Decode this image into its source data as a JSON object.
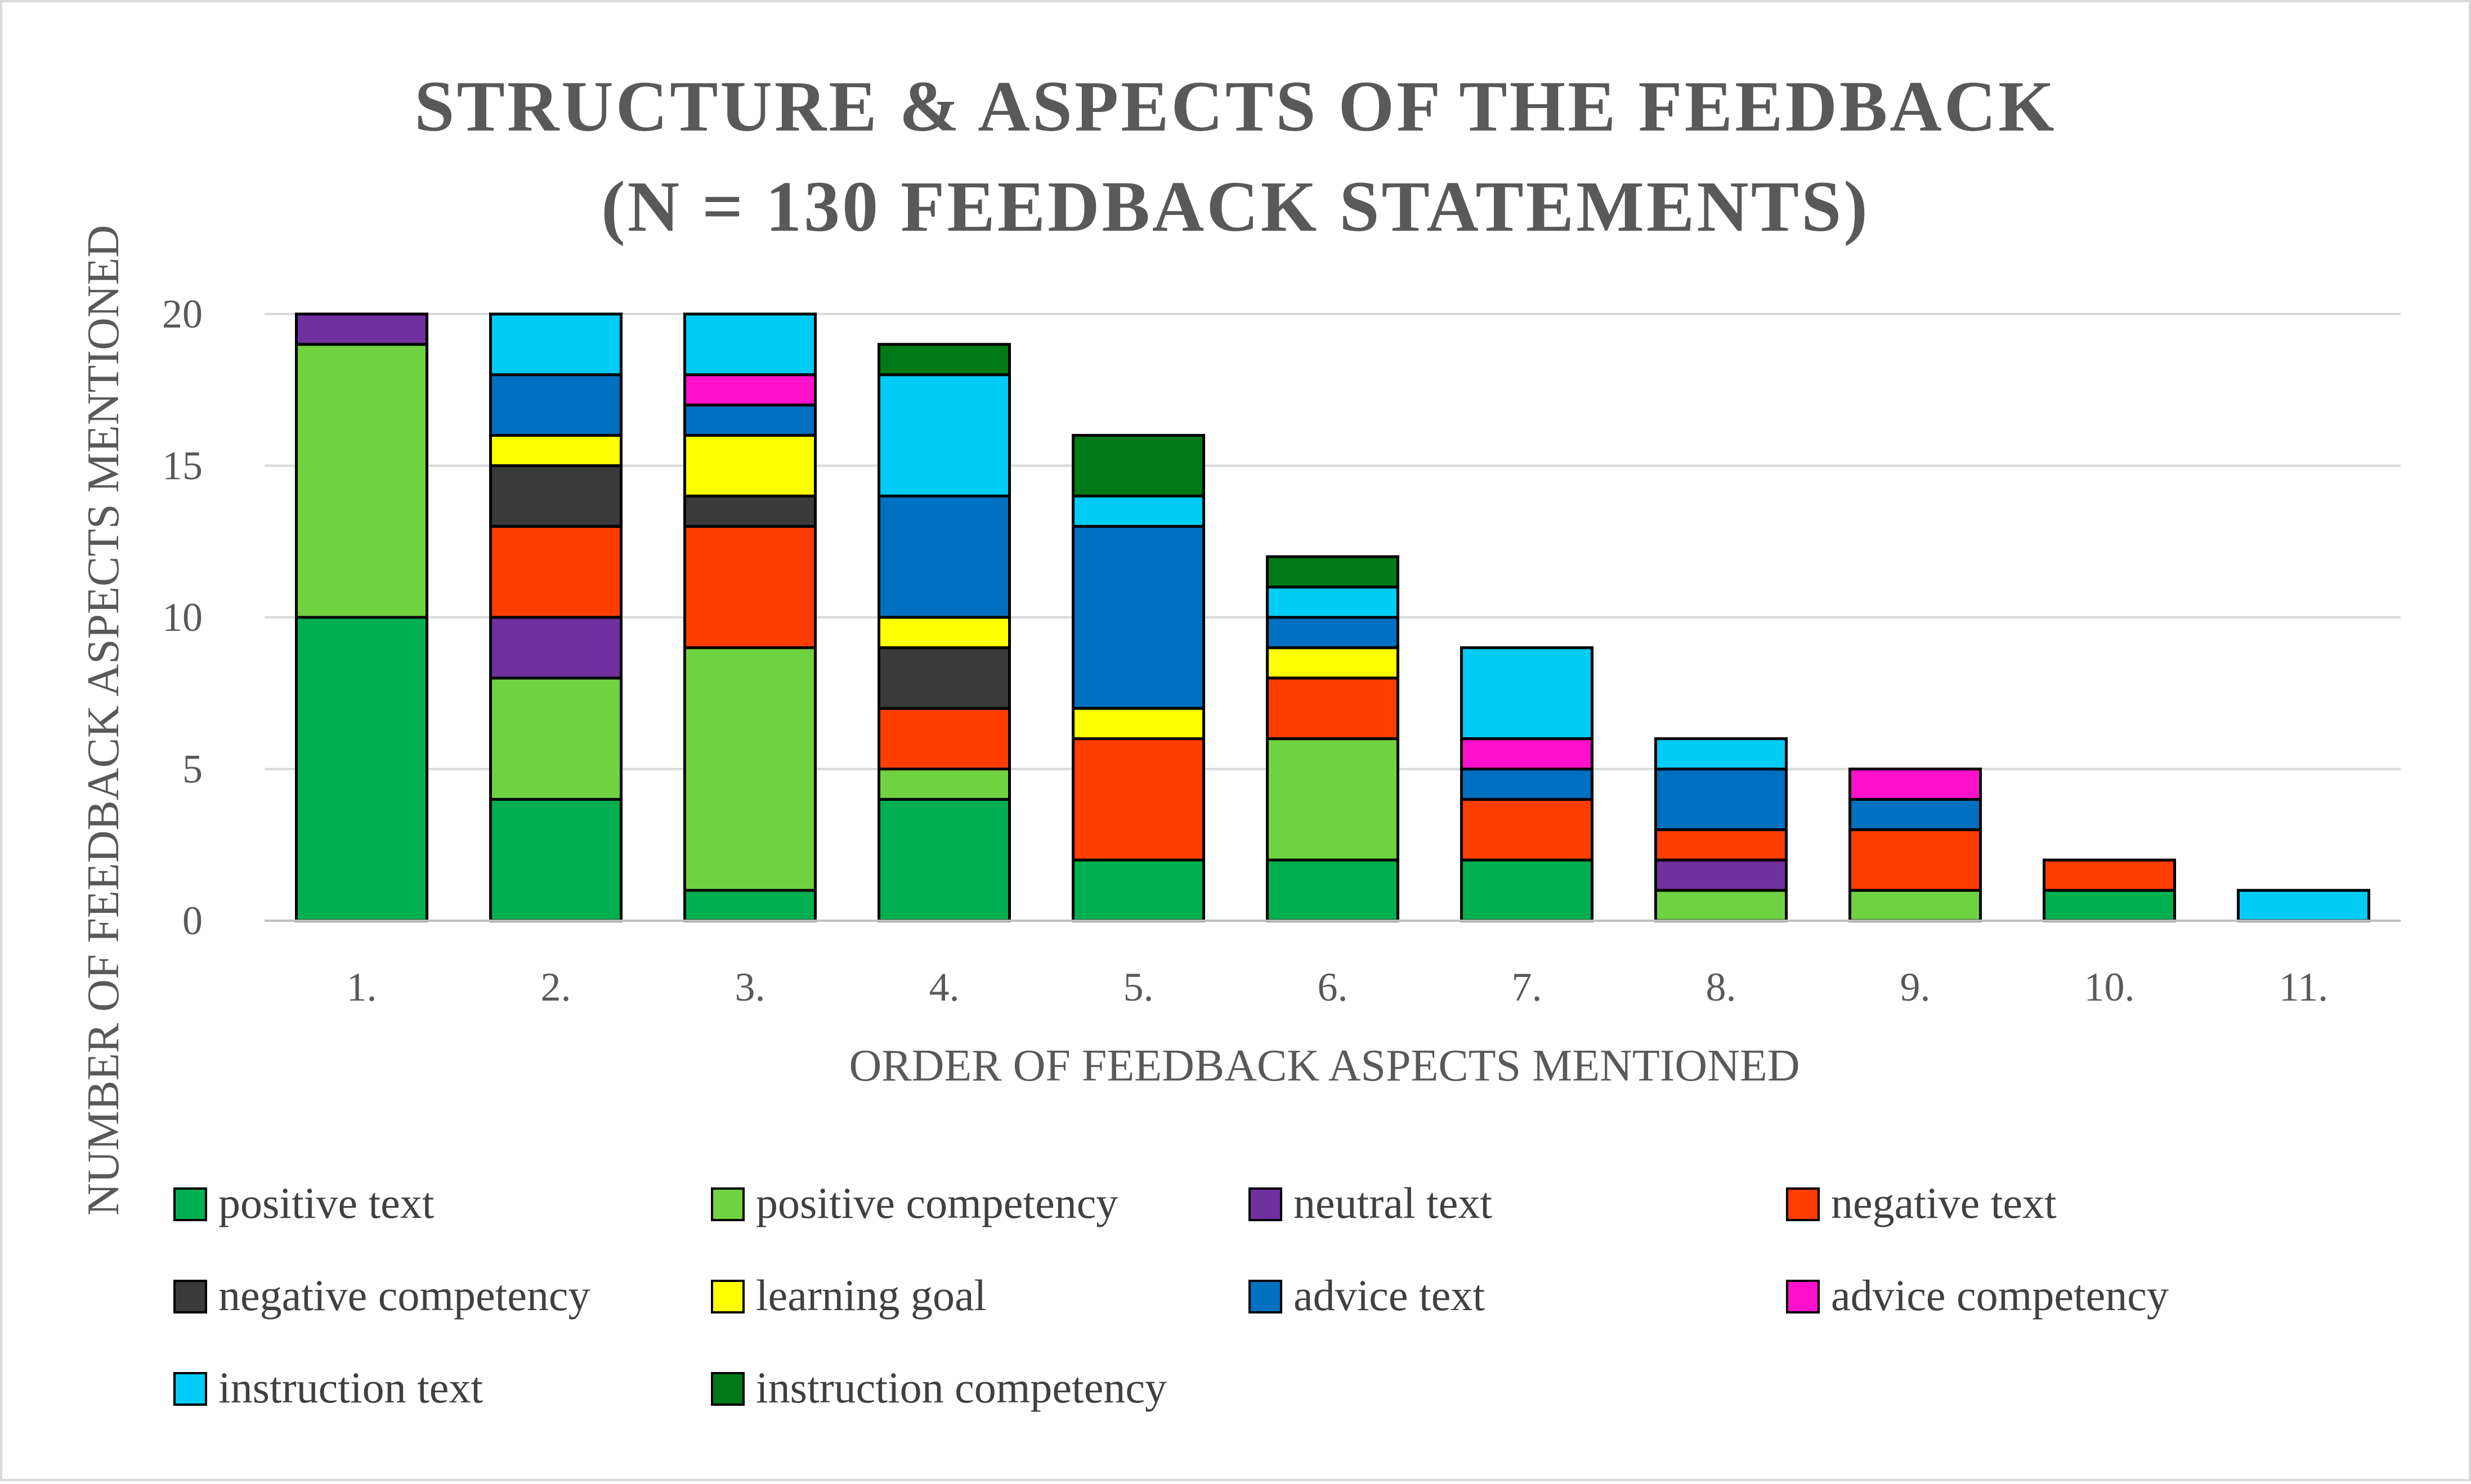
{
  "chart_data": {
    "type": "bar",
    "stacked": true,
    "title": [
      "STRUCTURE & ASPECTS OF THE FEEDBACK",
      "(N = 130 FEEDBACK STATEMENTS)"
    ],
    "xlabel": "ORDER OF FEEDBACK ASPECTS MENTIONED",
    "ylabel": "NUMBER OF FEEDBACK ASPECTS MENTIONED",
    "ylim": [
      0,
      20
    ],
    "yticks": [
      "0",
      "5",
      "10",
      "15",
      "20"
    ],
    "grid": true,
    "legend_position": "bottom",
    "categories": [
      "1.",
      "2.",
      "3.",
      "4.",
      "5.",
      "6.",
      "7.",
      "8.",
      "9.",
      "10.",
      "11."
    ],
    "series": [
      {
        "name": "positive text",
        "color": "#00B050",
        "values": [
          10,
          4,
          1,
          4,
          2,
          2,
          2,
          0,
          0,
          1,
          0
        ]
      },
      {
        "name": "positive competency",
        "color": "#6FD341",
        "values": [
          9,
          4,
          8,
          1,
          0,
          4,
          0,
          1,
          1,
          0,
          0
        ]
      },
      {
        "name": "neutral text",
        "color": "#7030A0",
        "values": [
          1,
          2,
          0,
          0,
          0,
          0,
          0,
          1,
          0,
          0,
          0
        ]
      },
      {
        "name": "negative text",
        "color": "#FF3D00",
        "values": [
          0,
          3,
          4,
          2,
          4,
          2,
          2,
          1,
          2,
          1,
          0
        ]
      },
      {
        "name": "negative competency",
        "color": "#3A3A3A",
        "values": [
          0,
          2,
          1,
          2,
          0,
          0,
          0,
          0,
          0,
          0,
          0
        ]
      },
      {
        "name": "learning goal",
        "color": "#FFFF00",
        "values": [
          0,
          1,
          2,
          1,
          1,
          1,
          0,
          0,
          0,
          0,
          0
        ]
      },
      {
        "name": "advice text",
        "color": "#0070C0",
        "values": [
          0,
          2,
          1,
          4,
          6,
          1,
          1,
          2,
          1,
          0,
          0
        ]
      },
      {
        "name": "advice competency",
        "color": "#FF11CC",
        "values": [
          0,
          0,
          1,
          0,
          0,
          0,
          1,
          0,
          1,
          0,
          0
        ]
      },
      {
        "name": "instruction text",
        "color": "#00CCF5",
        "values": [
          0,
          2,
          2,
          4,
          1,
          1,
          3,
          1,
          0,
          0,
          1
        ]
      },
      {
        "name": "instruction competency",
        "color": "#007A16",
        "values": [
          0,
          0,
          0,
          1,
          2,
          1,
          0,
          0,
          0,
          0,
          0
        ]
      }
    ],
    "colors": {
      "gridline": "#D9D9D9",
      "axis": "#BFBFBF",
      "bar_outline": "#000000",
      "frame": "#D9D9D9"
    }
  }
}
